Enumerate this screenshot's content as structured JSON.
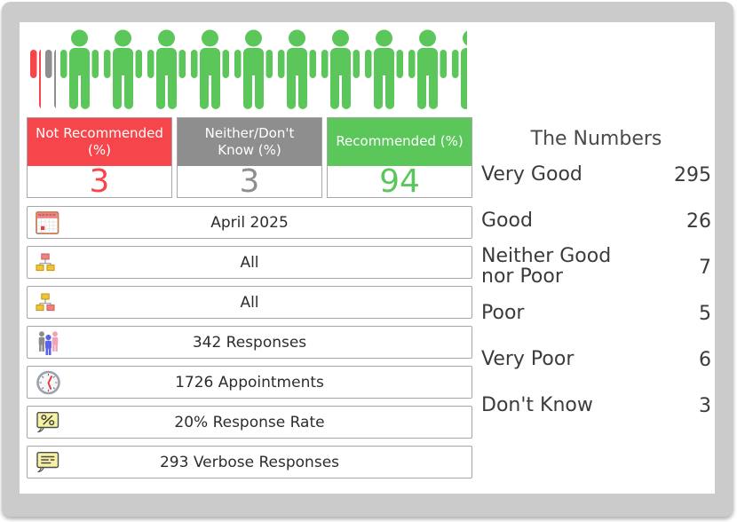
{
  "colors": {
    "red": "#f7464b",
    "gray": "#8e8e8e",
    "green": "#5bc75b",
    "frame": "#cbcbcb"
  },
  "pictogram": {
    "slots": [
      {
        "color": "red",
        "fraction": 0.29
      },
      {
        "color": "gray",
        "fraction": 0.29
      },
      {
        "color": "green",
        "fraction": 1
      },
      {
        "color": "green",
        "fraction": 1
      },
      {
        "color": "green",
        "fraction": 1
      },
      {
        "color": "green",
        "fraction": 1
      },
      {
        "color": "green",
        "fraction": 1
      },
      {
        "color": "green",
        "fraction": 1
      },
      {
        "color": "green",
        "fraction": 1
      },
      {
        "color": "green",
        "fraction": 1
      },
      {
        "color": "green",
        "fraction": 1
      },
      {
        "color": "green",
        "fraction": 0.4
      }
    ]
  },
  "stat_boxes": [
    {
      "label": "Not Recommended (%)",
      "value": "3",
      "color": "#f7464b"
    },
    {
      "label": "Neither/Don't Know (%)",
      "value": "3",
      "color": "#8e8e8e"
    },
    {
      "label": "Recommended (%)",
      "value": "94",
      "color": "#5bc75b"
    }
  ],
  "info_rows": [
    {
      "icon": "calendar-icon",
      "text": "April 2025"
    },
    {
      "icon": "org-chart-down-icon",
      "text": "All"
    },
    {
      "icon": "org-chart-up-icon",
      "text": "All"
    },
    {
      "icon": "people-group-icon",
      "text": "342 Responses"
    },
    {
      "icon": "clock-icon",
      "text": "1726 Appointments"
    },
    {
      "icon": "percent-bubble-icon",
      "text": "20% Response Rate"
    },
    {
      "icon": "comment-bubble-icon",
      "text": "293 Verbose Responses"
    }
  ],
  "numbers_panel": {
    "title": "The Numbers",
    "rows": [
      {
        "label": "Very Good",
        "value": "295"
      },
      {
        "label": "Good",
        "value": "26"
      },
      {
        "label": "Neither Good nor Poor",
        "value": "7"
      },
      {
        "label": "Poor",
        "value": "5"
      },
      {
        "label": "Very Poor",
        "value": "6"
      },
      {
        "label": "Don't Know",
        "value": "3"
      }
    ]
  }
}
